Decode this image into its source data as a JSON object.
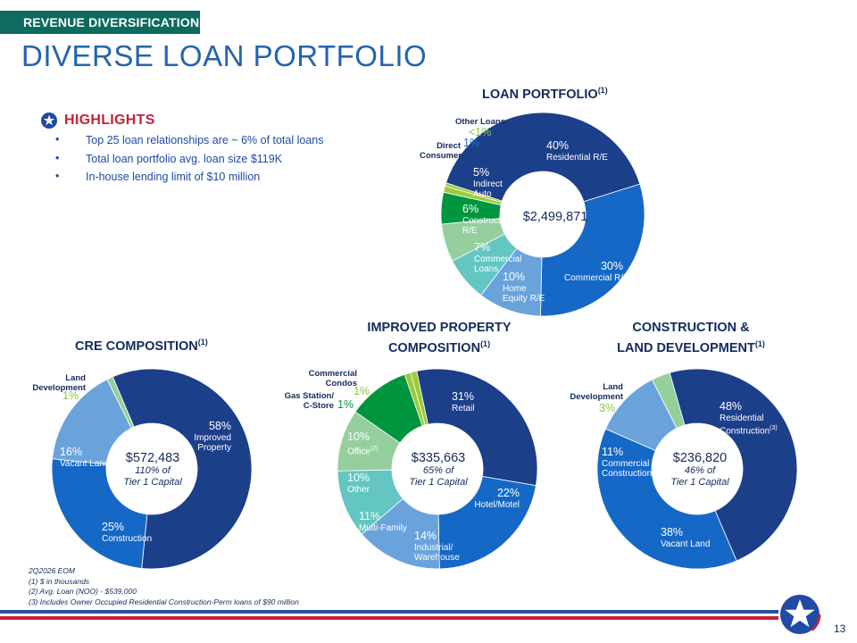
{
  "header": {
    "section_tag": "REVENUE DIVERSIFICATION",
    "page_title": "DIVERSE LOAN PORTFOLIO"
  },
  "highlights": {
    "title": "HIGHLIGHTS",
    "items": [
      "Top 25 loan relationships are ~ 6% of total loans",
      "Total loan portfolio avg. loan size $119K",
      "In-house lending limit of $10 million"
    ]
  },
  "icons": {
    "highlight_icon": "star-circle-icon",
    "logo": "star-logo-icon"
  },
  "colors": {
    "navy": "#1c3f8a",
    "blue": "#1568c6",
    "light_blue": "#6aa3dc",
    "teal": "#63c6c3",
    "light_green": "#95cf9e",
    "green": "#00953f",
    "lime": "#9ccb3b",
    "accent_red": "#c4213c",
    "tag_green": "#0d6b5f"
  },
  "chart_data": [
    {
      "id": "loan_portfolio",
      "type": "pie",
      "title": "LOAN PORTFOLIO",
      "title_note": "(1)",
      "center_value": "$2,499,871",
      "slices": [
        {
          "label": "Residential R/E",
          "value": 40,
          "display": "40%"
        },
        {
          "label": "Commercial R/E",
          "value": 30,
          "display": "30%"
        },
        {
          "label": "Home Equity R/E",
          "value": 10,
          "display": "10%"
        },
        {
          "label": "Commercial Loans",
          "value": 7,
          "display": "7%"
        },
        {
          "label": "Construction R/E",
          "value": 6,
          "display": "6%"
        },
        {
          "label": "Indirect Auto",
          "value": 5,
          "display": "5%"
        },
        {
          "label": "Direct Consumer",
          "value": 1,
          "display": "1%"
        },
        {
          "label": "Other Loans",
          "value": 0.5,
          "display": "<1%"
        }
      ]
    },
    {
      "id": "cre_composition",
      "type": "pie",
      "title": "CRE COMPOSITION",
      "title_note": "(1)",
      "center_value": "$572,483",
      "center_sub": "110% of",
      "center_sub2": "Tier 1 Capital",
      "slices": [
        {
          "label": "Improved Property",
          "value": 58,
          "display": "58%"
        },
        {
          "label": "Construction",
          "value": 25,
          "display": "25%"
        },
        {
          "label": "Vacant Land",
          "value": 16,
          "display": "16%"
        },
        {
          "label": "Land Development",
          "value": 1,
          "display": "1%"
        }
      ]
    },
    {
      "id": "improved_property",
      "type": "pie",
      "title": "IMPROVED PROPERTY",
      "title_line2": "COMPOSITION",
      "title_note": "(1)",
      "center_value": "$335,663",
      "center_sub": "65% of",
      "center_sub2": "Tier 1 Capital",
      "slices": [
        {
          "label": "Retail",
          "value": 31,
          "display": "31%"
        },
        {
          "label": "Hotel/Motel",
          "value": 22,
          "display": "22%"
        },
        {
          "label": "Industrial/ Warehouse",
          "value": 14,
          "display": "14%"
        },
        {
          "label": "Multi-Family",
          "value": 11,
          "display": "11%"
        },
        {
          "label": "Other",
          "value": 10,
          "display": "10%"
        },
        {
          "label": "Office",
          "value": 10,
          "display": "10%",
          "note": "(2)"
        },
        {
          "label": "Gas Station/ C-Store",
          "value": 1,
          "display": "1%"
        },
        {
          "label": "Commercial Condos",
          "value": 1,
          "display": "1%"
        }
      ]
    },
    {
      "id": "construction_land",
      "type": "pie",
      "title": "CONSTRUCTION &",
      "title_line2": "LAND DEVELOPMENT",
      "title_note": "(1)",
      "center_value": "$236,820",
      "center_sub": "46% of",
      "center_sub2": "Tier 1 Capital",
      "slices": [
        {
          "label": "Residential Construction",
          "value": 48,
          "display": "48%",
          "note": "(3)"
        },
        {
          "label": "Vacant Land",
          "value": 38,
          "display": "38%"
        },
        {
          "label": "Commercial Construction",
          "value": 11,
          "display": "11%"
        },
        {
          "label": "Land Development",
          "value": 3,
          "display": "3%"
        }
      ]
    }
  ],
  "footnotes": [
    "2Q2026 EOM",
    "(1) $ in thousands",
    "(2) Avg. Loan (NOO) - $539,000",
    "(3) Includes Owner Occupied Residential Construction-Perm loans of $90 million"
  ],
  "page_number": "13"
}
